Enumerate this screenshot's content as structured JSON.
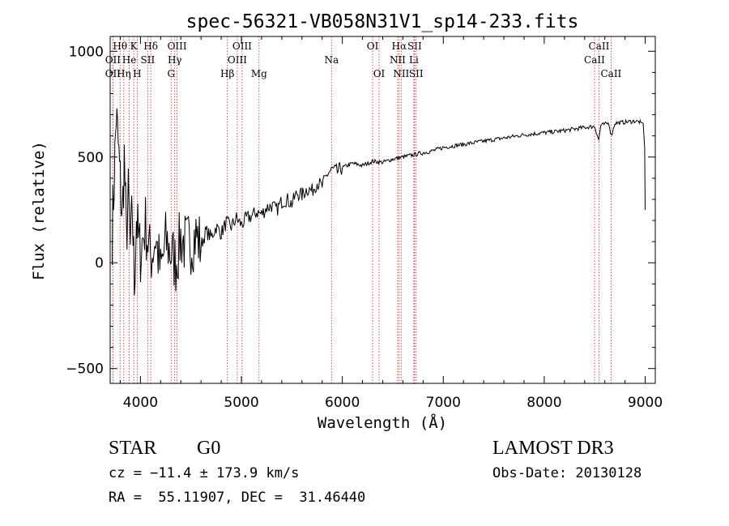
{
  "chart_data": {
    "type": "line",
    "title": "spec-56321-VB058N31V1_sp14-233.fits",
    "xlabel": "Wavelength (Å)",
    "ylabel": "Flux (relative)",
    "xlim": [
      3700,
      9100
    ],
    "ylim": [
      -570,
      1070
    ],
    "xticks": [
      4000,
      5000,
      6000,
      7000,
      8000,
      9000
    ],
    "yticks": [
      -500,
      0,
      500,
      1000
    ],
    "grid": false,
    "series": [
      {
        "name": "flux",
        "x": [
          3720,
          3740,
          3760,
          3780,
          3800,
          3820,
          3840,
          3860,
          3880,
          3900,
          3920,
          3940,
          3960,
          3980,
          4000,
          4050,
          4100,
          4150,
          4200,
          4250,
          4300,
          4350,
          4400,
          4450,
          4500,
          4550,
          4600,
          4650,
          4700,
          4750,
          4800,
          4850,
          4900,
          4950,
          5000,
          5050,
          5100,
          5150,
          5200,
          5250,
          5300,
          5350,
          5400,
          5450,
          5500,
          5550,
          5600,
          5650,
          5700,
          5750,
          5800,
          5850,
          5900,
          5950,
          6000,
          6100,
          6200,
          6300,
          6400,
          6500,
          6600,
          6700,
          6800,
          6900,
          7000,
          7200,
          7400,
          7600,
          7800,
          8000,
          8200,
          8400,
          8500,
          8540,
          8560,
          8600,
          8640,
          8664,
          8700,
          8800,
          8900,
          8950,
          8980,
          8995,
          9000
        ],
        "values": [
          150,
          400,
          700,
          550,
          380,
          200,
          500,
          120,
          310,
          60,
          250,
          -100,
          220,
          100,
          50,
          180,
          20,
          120,
          -50,
          100,
          50,
          0,
          120,
          80,
          100,
          130,
          80,
          150,
          120,
          170,
          140,
          190,
          170,
          210,
          180,
          210,
          220,
          240,
          230,
          260,
          270,
          250,
          290,
          300,
          280,
          330,
          320,
          350,
          340,
          380,
          360,
          420,
          440,
          430,
          450,
          470,
          460,
          480,
          475,
          490,
          500,
          510,
          520,
          530,
          545,
          560,
          575,
          590,
          605,
          615,
          625,
          640,
          645,
          580,
          650,
          655,
          660,
          600,
          660,
          665,
          670,
          665,
          660,
          540,
          250
        ]
      }
    ],
    "lines": [
      {
        "label": "Hθ",
        "x": 3798,
        "row": 0
      },
      {
        "label": "OII",
        "x": 3727,
        "row": 1
      },
      {
        "label": "OII",
        "x": 3727,
        "row": 2
      },
      {
        "label": "Hη",
        "x": 3835,
        "row": 2
      },
      {
        "label": "He",
        "x": 3889,
        "row": 1
      },
      {
        "label": "K",
        "x": 3934,
        "row": 0
      },
      {
        "label": "H",
        "x": 3968,
        "row": 2
      },
      {
        "label": "SII",
        "x": 4072,
        "row": 1
      },
      {
        "label": "Hδ",
        "x": 4102,
        "row": 0
      },
      {
        "label": "OIII",
        "x": 4363,
        "row": 0
      },
      {
        "label": "Hγ",
        "x": 4340,
        "row": 1
      },
      {
        "label": "G",
        "x": 4304,
        "row": 2
      },
      {
        "label": "Hβ",
        "x": 4861,
        "row": 2
      },
      {
        "label": "OIII",
        "x": 5007,
        "row": 0
      },
      {
        "label": "OIII",
        "x": 4959,
        "row": 1
      },
      {
        "label": "Mg",
        "x": 5175,
        "row": 2
      },
      {
        "label": "Na",
        "x": 5893,
        "row": 1
      },
      {
        "label": "OI",
        "x": 6300,
        "row": 0
      },
      {
        "label": "OI",
        "x": 6364,
        "row": 2
      },
      {
        "label": "Hα",
        "x": 6563,
        "row": 0
      },
      {
        "label": "NII",
        "x": 6548,
        "row": 1
      },
      {
        "label": "NII",
        "x": 6583,
        "row": 2
      },
      {
        "label": "SII",
        "x": 6716,
        "row": 0
      },
      {
        "label": "Li",
        "x": 6708,
        "row": 1
      },
      {
        "label": "SII",
        "x": 6731,
        "row": 2
      },
      {
        "label": "CaII",
        "x": 8542,
        "row": 0
      },
      {
        "label": "CaII",
        "x": 8498,
        "row": 1
      },
      {
        "label": "CaII",
        "x": 8662,
        "row": 2
      }
    ]
  },
  "info": {
    "obj_class": "STAR",
    "subclass": "G0",
    "survey": "LAMOST DR3",
    "cz": "cz = −11.4 ± 173.9 km/s",
    "obs_date": "Obs-Date: 20130128",
    "coords": "RA =  55.11907, DEC =  31.46440"
  },
  "colors": {
    "axis": "#000000",
    "line_marker": "#cc2222",
    "text": "#000000"
  }
}
